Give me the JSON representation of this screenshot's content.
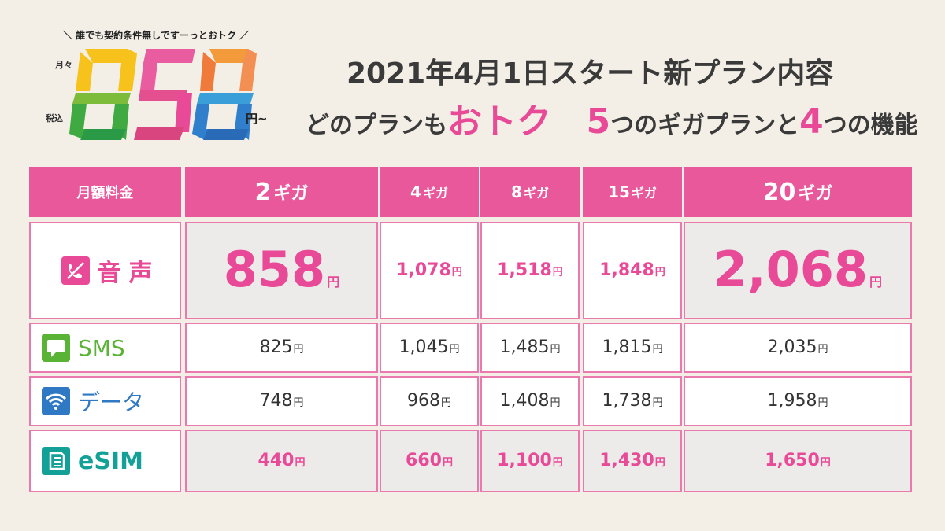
{
  "logo": {
    "tagline": "＼ 誰でも契約条件無しですーっとおトク ／",
    "month": "月々",
    "tax": "税込",
    "digits": "858",
    "yen_suffix": "円~"
  },
  "headline": {
    "title": "2021年4月1日スタート新プラン内容",
    "sub_part1": "どのプランも",
    "sub_otoku": "おトク",
    "sub_five": "5",
    "sub_part2": "つのギガプランと",
    "sub_four": "4",
    "sub_part3": "つの機能"
  },
  "table": {
    "header_label": "月額料金",
    "plans": [
      {
        "num": "2",
        "unit": "ギガ"
      },
      {
        "num": "4",
        "unit": "ギガ"
      },
      {
        "num": "8",
        "unit": "ギガ"
      },
      {
        "num": "15",
        "unit": "ギガ"
      },
      {
        "num": "20",
        "unit": "ギガ"
      }
    ],
    "yen": "円",
    "rows": [
      {
        "label": "音声",
        "icon": "phone-slash-icon",
        "prices": [
          "858",
          "1,078",
          "1,518",
          "1,848",
          "2,068"
        ]
      },
      {
        "label": "SMS",
        "icon": "chat-bubble-icon",
        "prices": [
          "825",
          "1,045",
          "1,485",
          "1,815",
          "2,035"
        ]
      },
      {
        "label": "データ",
        "icon": "wifi-icon",
        "prices": [
          "748",
          "968",
          "1,408",
          "1,738",
          "1,958"
        ]
      },
      {
        "label": "eSIM",
        "icon": "esim-chip-icon",
        "prices": [
          "440",
          "660",
          "1,100",
          "1,430",
          "1,650"
        ]
      }
    ]
  },
  "colors": {
    "pink": "#e8589b",
    "sms_green": "#59b334",
    "data_blue": "#2f78c4",
    "esim_teal": "#13a197"
  }
}
